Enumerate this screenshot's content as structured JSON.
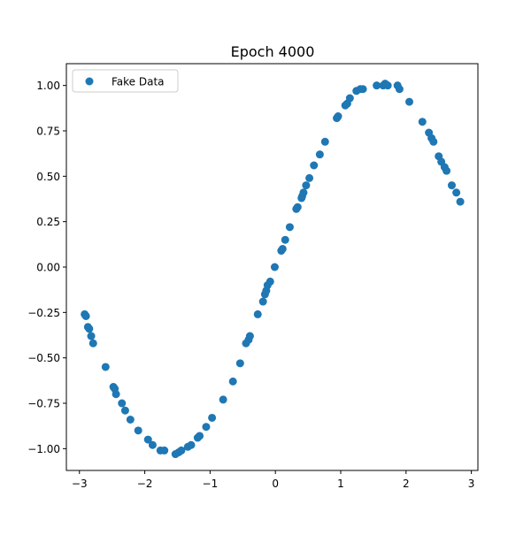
{
  "chart_data": {
    "type": "scatter",
    "title": "Epoch 4000",
    "xlabel": "",
    "ylabel": "",
    "xlim": [
      -3.2,
      3.1
    ],
    "ylim": [
      -1.12,
      1.12
    ],
    "xticks": [
      -3,
      -2,
      -1,
      0,
      1,
      2,
      3
    ],
    "xtick_labels": [
      "−3",
      "−2",
      "−1",
      "0",
      "1",
      "2",
      "3"
    ],
    "yticks": [
      1.0,
      0.75,
      0.5,
      0.25,
      0.0,
      -0.25,
      -0.5,
      -0.75,
      -1.0
    ],
    "ytick_labels": [
      "1.00",
      "0.75",
      "0.50",
      "0.25",
      "0.00",
      "−0.25",
      "−0.50",
      "−0.75",
      "−1.00"
    ],
    "grid": false,
    "legend_position": "top-left",
    "series": [
      {
        "name": "Fake Data",
        "color": "#1f77b4",
        "marker": "circle",
        "points": [
          [
            -2.92,
            -0.26
          ],
          [
            -2.9,
            -0.27
          ],
          [
            -2.87,
            -0.33
          ],
          [
            -2.85,
            -0.34
          ],
          [
            -2.82,
            -0.38
          ],
          [
            -2.79,
            -0.42
          ],
          [
            -2.6,
            -0.55
          ],
          [
            -2.48,
            -0.66
          ],
          [
            -2.46,
            -0.67
          ],
          [
            -2.44,
            -0.7
          ],
          [
            -2.35,
            -0.75
          ],
          [
            -2.3,
            -0.79
          ],
          [
            -2.22,
            -0.84
          ],
          [
            -2.1,
            -0.9
          ],
          [
            -1.95,
            -0.95
          ],
          [
            -1.88,
            -0.98
          ],
          [
            -1.76,
            -1.01
          ],
          [
            -1.7,
            -1.01
          ],
          [
            -1.53,
            -1.03
          ],
          [
            -1.48,
            -1.02
          ],
          [
            -1.44,
            -1.01
          ],
          [
            -1.34,
            -0.99
          ],
          [
            -1.29,
            -0.98
          ],
          [
            -1.19,
            -0.94
          ],
          [
            -1.16,
            -0.93
          ],
          [
            -1.06,
            -0.88
          ],
          [
            -0.97,
            -0.83
          ],
          [
            -0.8,
            -0.73
          ],
          [
            -0.65,
            -0.63
          ],
          [
            -0.54,
            -0.53
          ],
          [
            -0.45,
            -0.42
          ],
          [
            -0.41,
            -0.4
          ],
          [
            -0.39,
            -0.38
          ],
          [
            -0.27,
            -0.26
          ],
          [
            -0.19,
            -0.19
          ],
          [
            -0.16,
            -0.15
          ],
          [
            -0.14,
            -0.13
          ],
          [
            -0.12,
            -0.1
          ],
          [
            -0.08,
            -0.08
          ],
          [
            -0.01,
            0.0
          ],
          [
            0.09,
            0.09
          ],
          [
            0.11,
            0.1
          ],
          [
            0.15,
            0.15
          ],
          [
            0.22,
            0.22
          ],
          [
            0.32,
            0.32
          ],
          [
            0.34,
            0.33
          ],
          [
            0.4,
            0.38
          ],
          [
            0.41,
            0.39
          ],
          [
            0.43,
            0.41
          ],
          [
            0.47,
            0.45
          ],
          [
            0.52,
            0.49
          ],
          [
            0.59,
            0.56
          ],
          [
            0.68,
            0.62
          ],
          [
            0.76,
            0.69
          ],
          [
            0.94,
            0.82
          ],
          [
            0.96,
            0.83
          ],
          [
            1.07,
            0.89
          ],
          [
            1.1,
            0.9
          ],
          [
            1.14,
            0.93
          ],
          [
            1.24,
            0.97
          ],
          [
            1.3,
            0.98
          ],
          [
            1.34,
            0.98
          ],
          [
            1.55,
            1.0
          ],
          [
            1.65,
            1.0
          ],
          [
            1.68,
            1.01
          ],
          [
            1.72,
            1.0
          ],
          [
            1.87,
            1.0
          ],
          [
            1.9,
            0.98
          ],
          [
            2.05,
            0.91
          ],
          [
            2.25,
            0.8
          ],
          [
            2.35,
            0.74
          ],
          [
            2.39,
            0.71
          ],
          [
            2.42,
            0.69
          ],
          [
            2.5,
            0.61
          ],
          [
            2.54,
            0.58
          ],
          [
            2.59,
            0.55
          ],
          [
            2.62,
            0.53
          ],
          [
            2.7,
            0.45
          ],
          [
            2.77,
            0.41
          ],
          [
            2.83,
            0.36
          ]
        ]
      }
    ]
  }
}
